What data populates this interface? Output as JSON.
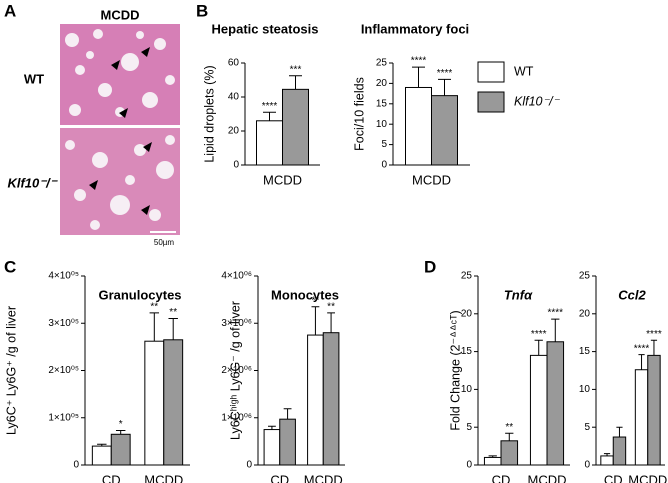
{
  "figure": {
    "letters": [
      "A",
      "B",
      "C",
      "D"
    ],
    "histology": {
      "condition": "MCDD",
      "rows": [
        "WT",
        "Klf10⁻/⁻"
      ],
      "scale": "50µm"
    }
  },
  "chart_data": [
    {
      "type": "bar",
      "title": "Hepatic steatosis",
      "y_label": "Lipid droplets (%)",
      "categories": [
        "MCDD"
      ],
      "ylim": [
        0,
        60
      ],
      "yticks": [
        0,
        20,
        40,
        60
      ],
      "series": [
        {
          "name": "WT",
          "color": "#ffffff",
          "values": [
            26
          ],
          "errors": [
            5
          ],
          "stars": [
            "****"
          ]
        },
        {
          "name": "Klf10⁻/⁻",
          "color": "#999999",
          "values": [
            44.5
          ],
          "errors": [
            8
          ],
          "stars": [
            "***"
          ]
        }
      ]
    },
    {
      "type": "bar",
      "title": "Inflammatory foci",
      "y_label": "Foci/10 fields",
      "categories": [
        "MCDD"
      ],
      "ylim": [
        0,
        25
      ],
      "yticks": [
        0,
        5,
        10,
        15,
        20,
        25
      ],
      "series": [
        {
          "name": "WT",
          "color": "#ffffff",
          "values": [
            19
          ],
          "errors": [
            5
          ],
          "stars": [
            "****"
          ]
        },
        {
          "name": "Klf10⁻/⁻",
          "color": "#999999",
          "values": [
            17
          ],
          "errors": [
            4
          ],
          "stars": [
            "****"
          ]
        }
      ]
    },
    {
      "type": "bar",
      "title": "Granulocytes",
      "y_label": "Ly6C⁺ Ly6G⁺ /g of liver",
      "categories": [
        "CD",
        "MCDD"
      ],
      "ylim": [
        0,
        400000
      ],
      "yticks": [
        0,
        {
          "value": 100000,
          "label": "1×10⁰⁵"
        },
        {
          "value": 200000,
          "label": "2×10⁰⁵"
        },
        {
          "value": 300000,
          "label": "3×10⁰⁵"
        },
        {
          "value": 400000,
          "label": "4×10⁰⁵"
        }
      ],
      "series": [
        {
          "name": "WT",
          "color": "#ffffff",
          "values": [
            40000,
            262000
          ],
          "errors": [
            4000,
            60000
          ],
          "stars": [
            null,
            "**"
          ]
        },
        {
          "name": "Klf10⁻/⁻",
          "color": "#999999",
          "values": [
            65000,
            265000
          ],
          "errors": [
            8000,
            45000
          ],
          "stars": [
            "*",
            "**"
          ]
        }
      ]
    },
    {
      "type": "bar",
      "title": "Monocytes",
      "y_label": "Ly6Cʰⁱᵍʰ Ly6G⁻ /g of liver",
      "categories": [
        "CD",
        "MCDD"
      ],
      "ylim": [
        0,
        4000000
      ],
      "yticks": [
        0,
        {
          "value": 1000000,
          "label": "1×10⁰⁶"
        },
        {
          "value": 2000000,
          "label": "2×10⁰⁶"
        },
        {
          "value": 3000000,
          "label": "3×10⁰⁶"
        },
        {
          "value": 4000000,
          "label": "4×10⁰⁶"
        }
      ],
      "series": [
        {
          "name": "WT",
          "color": "#ffffff",
          "values": [
            750000,
            2750000
          ],
          "errors": [
            70000,
            600000
          ],
          "stars": [
            null,
            "**"
          ]
        },
        {
          "name": "Klf10⁻/⁻",
          "color": "#999999",
          "values": [
            970000,
            2800000
          ],
          "errors": [
            220000,
            420000
          ],
          "stars": [
            null,
            "**"
          ]
        }
      ]
    },
    {
      "type": "bar",
      "title": "Tnfα",
      "title_style": "italic",
      "y_label": "Fold Change (2⁻ᐞᐞᶜᵀ)",
      "categories": [
        "CD",
        "MCDD"
      ],
      "ylim": [
        0,
        25
      ],
      "yticks": [
        0,
        5,
        10,
        15,
        20,
        25
      ],
      "series": [
        {
          "name": "WT",
          "color": "#ffffff",
          "values": [
            1,
            14.5
          ],
          "errors": [
            0.2,
            2
          ],
          "stars": [
            null,
            "****"
          ]
        },
        {
          "name": "Klf10⁻/⁻",
          "color": "#999999",
          "values": [
            3.2,
            16.3
          ],
          "errors": [
            1,
            3
          ],
          "stars": [
            "**",
            "****"
          ]
        }
      ]
    },
    {
      "type": "bar",
      "title": "Ccl2",
      "title_style": "italic",
      "categories": [
        "CD",
        "MCDD"
      ],
      "ylim": [
        0,
        25
      ],
      "yticks": [
        0,
        5,
        10,
        15,
        20,
        25
      ],
      "series": [
        {
          "name": "WT",
          "color": "#ffffff",
          "values": [
            1.2,
            12.6
          ],
          "errors": [
            0.3,
            2
          ],
          "stars": [
            null,
            "****"
          ]
        },
        {
          "name": "Klf10⁻/⁻",
          "color": "#999999",
          "values": [
            3.7,
            14.5
          ],
          "errors": [
            1.3,
            2
          ],
          "stars": [
            null,
            "****"
          ]
        }
      ]
    }
  ]
}
